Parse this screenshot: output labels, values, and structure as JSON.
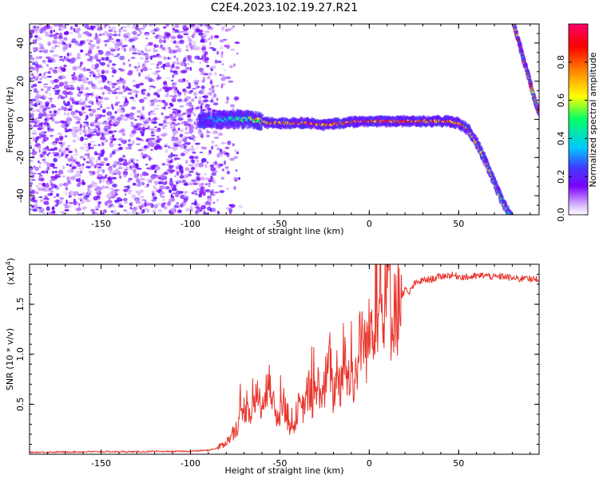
{
  "title": "C2E4.2023.102.19.27.R21",
  "colors": {
    "snr_line": "#e8332a",
    "colormap": [
      "#ffffff",
      "#7a00ff",
      "#3f3fff",
      "#00c8ff",
      "#00ff66",
      "#ffff00",
      "#ff8800",
      "#ff0000",
      "#ff0066"
    ]
  },
  "chart_data": [
    {
      "type": "heatmap",
      "name": "spectrogram",
      "xlabel": "Height of straight line (km)",
      "ylabel": "Frequency (Hz)",
      "xlim": [
        -190,
        95
      ],
      "ylim": [
        -50,
        50
      ],
      "xticks": [
        -150,
        -100,
        -50,
        0,
        50
      ],
      "yticks": [
        -40,
        -20,
        0,
        20,
        40
      ],
      "xtick_labels": [
        "-150",
        "-100",
        "-50",
        "0",
        "50"
      ],
      "ytick_labels": [
        "-40",
        "-20",
        "0",
        "20",
        "40"
      ],
      "colorbar": {
        "label": "Normalized spectral amplitude",
        "range": [
          0,
          1
        ],
        "ticks": [
          0.0,
          0.2,
          0.4,
          0.6,
          0.8
        ],
        "tick_labels": [
          "0.0",
          "0.2",
          "0.4",
          "0.6",
          "0.8"
        ]
      },
      "noise_region_x": [
        -190,
        -80
      ],
      "main_trace": {
        "x": [
          -95,
          -85,
          -75,
          -65,
          -55,
          -45,
          -35,
          -25,
          -15,
          -5,
          5,
          15,
          25,
          35,
          45,
          50,
          55,
          60,
          65,
          70,
          75,
          80
        ],
        "y": [
          0,
          0,
          0,
          0,
          -2,
          -2,
          -2,
          -3,
          -2,
          -1,
          -1,
          -1,
          -1,
          -1,
          -1,
          -2,
          -5,
          -12,
          -22,
          -33,
          -44,
          -52
        ]
      },
      "secondary_trace": {
        "x": [
          80,
          83,
          86,
          89,
          92,
          95
        ],
        "y": [
          52,
          43,
          32,
          23,
          12,
          3
        ]
      }
    },
    {
      "type": "line",
      "name": "snr",
      "xlabel": "Height of straight line (km)",
      "ylabel": "SNR (10 * v/v)",
      "exponent_label": "(x10",
      "exponent_power": "4",
      "exponent_close": ")",
      "xlim": [
        -190,
        95
      ],
      "ylim": [
        0,
        19000
      ],
      "xticks": [
        -150,
        -100,
        -50,
        0,
        50
      ],
      "yticks": [
        5000,
        10000,
        15000
      ],
      "xtick_labels": [
        "-150",
        "-100",
        "-50",
        "0",
        "50"
      ],
      "ytick_labels": [
        "0.5",
        "1.0",
        "1.5"
      ],
      "series": [
        {
          "x": [
            -190,
            -170,
            -150,
            -130,
            -110,
            -100,
            -90,
            -85,
            -80,
            -77,
            -75,
            -72,
            -70,
            -68,
            -66,
            -64,
            -62,
            -60,
            -58,
            -56,
            -54,
            -52,
            -50,
            -48,
            -46,
            -44,
            -42,
            -40,
            -38,
            -36,
            -34,
            -32,
            -30,
            -28,
            -26,
            -24,
            -22,
            -20,
            -18,
            -16,
            -14,
            -12,
            -10,
            -8,
            -6,
            -4,
            -2,
            0,
            2,
            4,
            6,
            8,
            10,
            11,
            12,
            14,
            16,
            18,
            20,
            22,
            25,
            30,
            35,
            40,
            45,
            50,
            55,
            60,
            65,
            70,
            75,
            80,
            85,
            88,
            90,
            95
          ],
          "y": [
            200,
            230,
            260,
            250,
            280,
            300,
            400,
            600,
            1200,
            1800,
            2500,
            3200,
            4500,
            5200,
            4000,
            4800,
            6500,
            4200,
            5300,
            9500,
            5000,
            3800,
            4200,
            5500,
            3800,
            2500,
            2800,
            4800,
            4200,
            5200,
            6500,
            5200,
            5800,
            7200,
            5500,
            7800,
            9200,
            5500,
            8500,
            6800,
            9500,
            7500,
            8200,
            7200,
            10200,
            12000,
            10500,
            11800,
            13500,
            15500,
            14500,
            13000,
            15200,
            19500,
            13500,
            15500,
            14500,
            15800,
            16500,
            16000,
            17000,
            17400,
            17500,
            17800,
            17900,
            17800,
            17700,
            17800,
            17900,
            17700,
            17800,
            17600,
            17500,
            17900,
            17400,
            17600
          ]
        }
      ]
    }
  ]
}
